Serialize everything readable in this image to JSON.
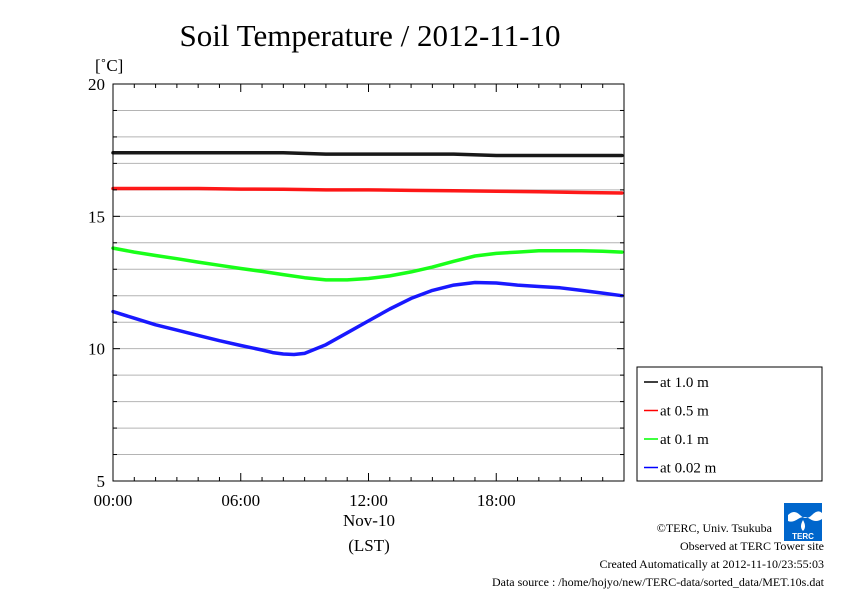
{
  "chart_data": {
    "type": "line",
    "title": "Soil Temperature / 2012-11-10",
    "ylabel": "[˚C]",
    "xlabel": "(LST)",
    "date_label": "Nov-10",
    "xlim": [
      0,
      24
    ],
    "ylim": [
      5,
      20
    ],
    "xticks": [
      {
        "value": 0,
        "label": "00:00"
      },
      {
        "value": 6,
        "label": "06:00"
      },
      {
        "value": 12,
        "label": "12:00"
      },
      {
        "value": 18,
        "label": "18:00"
      }
    ],
    "yticks": [
      {
        "value": 5,
        "label": "5"
      },
      {
        "value": 10,
        "label": "10"
      },
      {
        "value": 15,
        "label": "15"
      },
      {
        "value": 20,
        "label": "20"
      }
    ],
    "grid": true,
    "legend_position": "right-bottom",
    "series": [
      {
        "name": "at 1.0 m",
        "color": "#000000",
        "x": [
          0,
          2,
          4,
          6,
          8,
          10,
          12,
          14,
          16,
          18,
          20,
          22,
          23.9
        ],
        "y": [
          17.4,
          17.4,
          17.4,
          17.4,
          17.4,
          17.35,
          17.35,
          17.35,
          17.35,
          17.3,
          17.3,
          17.3,
          17.3
        ]
      },
      {
        "name": "at 0.5 m",
        "color": "#ff0000",
        "x": [
          0,
          2,
          4,
          6,
          8,
          10,
          12,
          14,
          16,
          18,
          20,
          22,
          23.9
        ],
        "y": [
          16.05,
          16.05,
          16.05,
          16.03,
          16.02,
          16.0,
          16.0,
          15.98,
          15.97,
          15.95,
          15.93,
          15.9,
          15.88
        ]
      },
      {
        "name": "at 0.1 m",
        "color": "#00ff00",
        "x": [
          0,
          1,
          2,
          3,
          4,
          5,
          6,
          7,
          8,
          9,
          10,
          11,
          12,
          13,
          14,
          15,
          16,
          17,
          18,
          19,
          20,
          21,
          22,
          23,
          23.9
        ],
        "y": [
          13.8,
          13.65,
          13.52,
          13.4,
          13.27,
          13.15,
          13.03,
          12.92,
          12.8,
          12.68,
          12.6,
          12.6,
          12.65,
          12.75,
          12.9,
          13.08,
          13.3,
          13.5,
          13.6,
          13.65,
          13.7,
          13.7,
          13.7,
          13.68,
          13.65
        ]
      },
      {
        "name": "at 0.02 m",
        "color": "#0000ff",
        "x": [
          0,
          1,
          2,
          3,
          4,
          5,
          6,
          7,
          7.5,
          8,
          8.5,
          9,
          10,
          11,
          12,
          13,
          14,
          15,
          16,
          17,
          18,
          19,
          20,
          21,
          22,
          23,
          23.9
        ],
        "y": [
          11.4,
          11.15,
          10.9,
          10.7,
          10.5,
          10.3,
          10.12,
          9.95,
          9.85,
          9.8,
          9.78,
          9.82,
          10.15,
          10.6,
          11.05,
          11.5,
          11.9,
          12.2,
          12.4,
          12.5,
          12.48,
          12.4,
          12.35,
          12.3,
          12.2,
          12.1,
          12.0
        ]
      }
    ]
  },
  "footer": {
    "credit": "©TERC, Univ. Tsukuba",
    "observed": "Observed at TERC Tower site",
    "created": "Created Automatically at 2012-11-10/23:55:03",
    "source": "Data source : /home/hojyo/new/TERC-data/sorted_data/MET.10s.dat"
  },
  "logo": {
    "text": "TERC",
    "color": "#0066cc"
  }
}
